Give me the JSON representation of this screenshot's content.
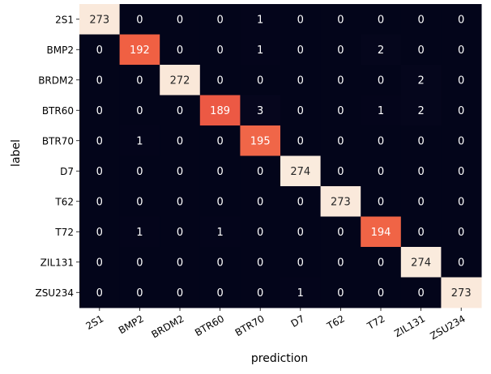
{
  "chart_data": {
    "type": "heatmap",
    "title": "",
    "xlabel": "prediction",
    "ylabel": "label",
    "x_categories": [
      "2S1",
      "BMP2",
      "BRDM2",
      "BTR60",
      "BTR70",
      "D7",
      "T62",
      "T72",
      "ZIL131",
      "ZSU234"
    ],
    "y_categories": [
      "2S1",
      "BMP2",
      "BRDM2",
      "BTR60",
      "BTR70",
      "D7",
      "T62",
      "T72",
      "ZIL131",
      "ZSU234"
    ],
    "values": [
      [
        273,
        0,
        0,
        0,
        1,
        0,
        0,
        0,
        0,
        0
      ],
      [
        0,
        192,
        0,
        0,
        1,
        0,
        0,
        2,
        0,
        0
      ],
      [
        0,
        0,
        272,
        0,
        0,
        0,
        0,
        0,
        2,
        0
      ],
      [
        0,
        0,
        0,
        189,
        3,
        0,
        0,
        1,
        2,
        0
      ],
      [
        0,
        1,
        0,
        0,
        195,
        0,
        0,
        0,
        0,
        0
      ],
      [
        0,
        0,
        0,
        0,
        0,
        274,
        0,
        0,
        0,
        0
      ],
      [
        0,
        0,
        0,
        0,
        0,
        0,
        273,
        0,
        0,
        0
      ],
      [
        0,
        1,
        0,
        1,
        0,
        0,
        0,
        194,
        0,
        0
      ],
      [
        0,
        0,
        0,
        0,
        0,
        0,
        0,
        0,
        274,
        0
      ],
      [
        0,
        0,
        0,
        0,
        0,
        1,
        0,
        0,
        0,
        273
      ]
    ],
    "colormap": "rocket",
    "colorbar": false,
    "xtick_rotation_deg": 30
  }
}
